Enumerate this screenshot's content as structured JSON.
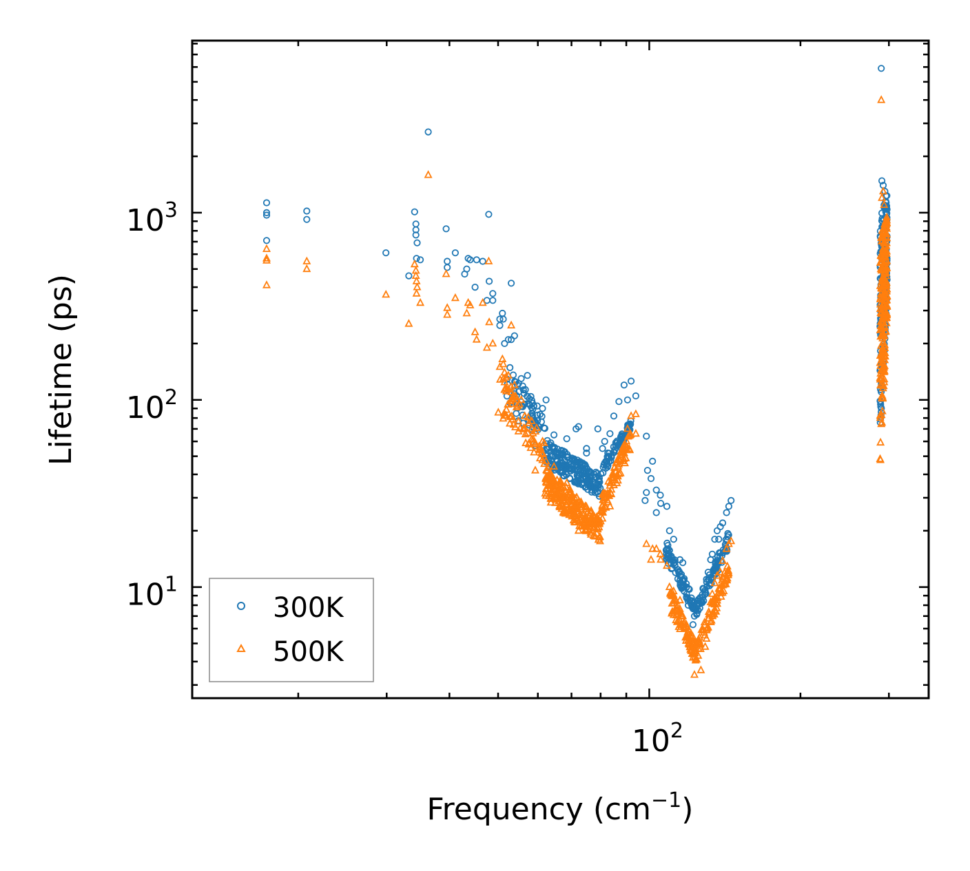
{
  "chart_data": {
    "type": "scatter",
    "title": "",
    "xlabel": "Frequency (cm",
    "xlabel_sup": "−1",
    "xlabel_tail": ")",
    "ylabel": "Lifetime (ps)",
    "xscale": "log",
    "yscale": "log",
    "xlim": [
      12.3,
      360
    ],
    "ylim": [
      2.55,
      8300
    ],
    "x_tick_labels": [
      {
        "base": "10",
        "exp": "2",
        "value": 100
      }
    ],
    "y_tick_labels": [
      {
        "base": "10",
        "exp": "1",
        "value": 10
      },
      {
        "base": "10",
        "exp": "2",
        "value": 100
      },
      {
        "base": "10",
        "exp": "3",
        "value": 1000
      }
    ],
    "legend": {
      "position": "bottom-left",
      "entries": [
        "300K",
        "500K"
      ]
    },
    "series": [
      {
        "name": "300K",
        "color": "#1f77b4",
        "marker": "circle",
        "points": [
          [
            17.3,
            1130
          ],
          [
            17.3,
            1000
          ],
          [
            17.3,
            970
          ],
          [
            17.3,
            710
          ],
          [
            20.8,
            1020
          ],
          [
            20.8,
            920
          ],
          [
            29.9,
            610
          ],
          [
            33.2,
            460
          ],
          [
            34.1,
            1010
          ],
          [
            34.3,
            870
          ],
          [
            34.3,
            810
          ],
          [
            34.3,
            760
          ],
          [
            34.5,
            690
          ],
          [
            34.4,
            570
          ],
          [
            35.0,
            560
          ],
          [
            36.3,
            2700
          ],
          [
            39.4,
            820
          ],
          [
            39.6,
            550
          ],
          [
            39.6,
            510
          ],
          [
            41.1,
            610
          ],
          [
            42.9,
            470
          ],
          [
            43.3,
            500
          ],
          [
            43.6,
            570
          ],
          [
            44.0,
            560
          ],
          [
            45.0,
            400
          ],
          [
            45.3,
            560
          ],
          [
            46.6,
            550
          ],
          [
            47.5,
            340
          ],
          [
            47.9,
            980
          ],
          [
            48.0,
            430
          ],
          [
            48.8,
            370
          ],
          [
            48.8,
            340
          ],
          [
            50.4,
            270
          ],
          [
            50.4,
            250
          ],
          [
            51.0,
            290
          ],
          [
            51.2,
            270
          ],
          [
            51.5,
            200
          ],
          [
            52.4,
            210
          ],
          [
            53.1,
            420
          ],
          [
            53.1,
            210
          ],
          [
            53.9,
            220
          ],
          [
            55.6,
            130
          ],
          [
            56.5,
            95
          ],
          [
            57.2,
            135
          ],
          [
            57.6,
            95
          ],
          [
            58.4,
            85
          ],
          [
            59.3,
            75
          ],
          [
            59.3,
            57
          ],
          [
            61.3,
            90
          ],
          [
            62.3,
            100
          ],
          [
            64.6,
            65
          ],
          [
            68.5,
            62
          ],
          [
            70.1,
            48
          ],
          [
            71.5,
            70
          ],
          [
            72.3,
            72
          ],
          [
            73.7,
            46
          ],
          [
            75.0,
            55
          ],
          [
            75.0,
            52
          ],
          [
            77.7,
            40
          ],
          [
            79.0,
            70
          ],
          [
            80.7,
            55
          ],
          [
            81.5,
            60
          ],
          [
            82.7,
            52
          ],
          [
            83.5,
            66
          ],
          [
            85.0,
            82
          ],
          [
            87.0,
            98
          ],
          [
            89.1,
            120
          ],
          [
            90.5,
            100
          ],
          [
            92.0,
            126
          ],
          [
            94.0,
            105
          ],
          [
            98.7,
            64
          ],
          [
            99.2,
            42
          ],
          [
            100.8,
            38
          ],
          [
            101.5,
            47
          ],
          [
            98.7,
            32
          ],
          [
            98.1,
            29
          ],
          [
            103.3,
            33
          ],
          [
            103.3,
            25
          ],
          [
            105.2,
            31
          ],
          [
            105.4,
            28
          ],
          [
            108.4,
            27
          ],
          [
            109.7,
            20
          ],
          [
            111.8,
            18
          ],
          [
            115.1,
            14
          ],
          [
            116.6,
            13.5
          ],
          [
            117.4,
            9.5
          ],
          [
            118.6,
            10
          ],
          [
            119.6,
            8
          ],
          [
            120.5,
            8.5
          ],
          [
            121.7,
            7.8
          ],
          [
            122.2,
            6.3
          ],
          [
            123.0,
            7
          ],
          [
            124.3,
            7.2
          ],
          [
            125.1,
            7.5
          ],
          [
            126.7,
            8.3
          ],
          [
            129.2,
            9.4
          ],
          [
            130.0,
            11
          ],
          [
            131.0,
            12
          ],
          [
            132.5,
            14
          ],
          [
            133.5,
            15
          ],
          [
            135.0,
            18
          ],
          [
            136.5,
            20
          ],
          [
            137.5,
            18
          ],
          [
            138.5,
            21
          ],
          [
            140.0,
            22
          ],
          [
            142.5,
            25
          ],
          [
            144.0,
            27
          ],
          [
            145.5,
            29
          ],
          [
            289.7,
            5900
          ],
          [
            290.5,
            1480
          ],
          [
            291.0,
            930
          ],
          [
            292.3,
            1400
          ],
          [
            293.5,
            1100
          ],
          [
            294.5,
            1300
          ],
          [
            295.5,
            1150
          ],
          [
            296.0,
            900
          ],
          [
            297.0,
            700
          ]
        ]
      },
      {
        "name": "500K",
        "color": "#ff7f0e",
        "marker": "triangle",
        "points": [
          [
            17.3,
            640
          ],
          [
            17.3,
            570
          ],
          [
            17.3,
            555
          ],
          [
            17.3,
            410
          ],
          [
            20.8,
            550
          ],
          [
            20.8,
            500
          ],
          [
            29.9,
            365
          ],
          [
            33.2,
            255
          ],
          [
            34.1,
            530
          ],
          [
            34.3,
            490
          ],
          [
            34.3,
            460
          ],
          [
            34.4,
            430
          ],
          [
            34.5,
            400
          ],
          [
            34.4,
            370
          ],
          [
            35.0,
            330
          ],
          [
            36.3,
            1590
          ],
          [
            39.4,
            470
          ],
          [
            39.6,
            310
          ],
          [
            39.6,
            285
          ],
          [
            41.1,
            350
          ],
          [
            43.3,
            290
          ],
          [
            43.6,
            330
          ],
          [
            44.0,
            320
          ],
          [
            45.0,
            230
          ],
          [
            45.3,
            210
          ],
          [
            46.6,
            330
          ],
          [
            47.5,
            190
          ],
          [
            47.9,
            550
          ],
          [
            48.0,
            260
          ],
          [
            48.8,
            200
          ],
          [
            50.4,
            150
          ],
          [
            51.0,
            165
          ],
          [
            51.2,
            155
          ],
          [
            51.5,
            140
          ],
          [
            52.4,
            135
          ],
          [
            53.1,
            250
          ],
          [
            53.9,
            120
          ],
          [
            55.6,
            100
          ],
          [
            56.5,
            82
          ],
          [
            57.6,
            75
          ],
          [
            58.4,
            70
          ],
          [
            59.3,
            58
          ],
          [
            59.3,
            42
          ],
          [
            61.3,
            60
          ],
          [
            62.3,
            47
          ],
          [
            64.6,
            44
          ],
          [
            68.5,
            36
          ],
          [
            70.1,
            30
          ],
          [
            71.5,
            24
          ],
          [
            72.3,
            20
          ],
          [
            73.7,
            22
          ],
          [
            75.0,
            20
          ],
          [
            77.7,
            21
          ],
          [
            79.0,
            22
          ],
          [
            80.7,
            25
          ],
          [
            81.5,
            30
          ],
          [
            82.7,
            31
          ],
          [
            83.5,
            27
          ],
          [
            85.0,
            35
          ],
          [
            87.0,
            48
          ],
          [
            89.1,
            52
          ],
          [
            90.5,
            70
          ],
          [
            92.0,
            82
          ],
          [
            94.0,
            84
          ],
          [
            94.0,
            66
          ],
          [
            98.7,
            17
          ],
          [
            100.8,
            14
          ],
          [
            101.5,
            16
          ],
          [
            103.3,
            16
          ],
          [
            105.2,
            15
          ],
          [
            105.4,
            14
          ],
          [
            108.4,
            13
          ],
          [
            109.7,
            10
          ],
          [
            111.8,
            9.5
          ],
          [
            115.1,
            8.5
          ],
          [
            116.6,
            7
          ],
          [
            117.4,
            6.5
          ],
          [
            118.6,
            5.5
          ],
          [
            119.6,
            5.2
          ],
          [
            120.5,
            4.8
          ],
          [
            121.7,
            4.4
          ],
          [
            122.2,
            4.2
          ],
          [
            123.0,
            3.4
          ],
          [
            124.3,
            4.1
          ],
          [
            125.1,
            4.3
          ],
          [
            126.7,
            3.6
          ],
          [
            129.2,
            4.8
          ],
          [
            130.0,
            5.3
          ],
          [
            131.0,
            6.8
          ],
          [
            132.5,
            8.3
          ],
          [
            133.5,
            9.2
          ],
          [
            135.0,
            10.5
          ],
          [
            136.5,
            11.5
          ],
          [
            137.5,
            9.8
          ],
          [
            138.5,
            12
          ],
          [
            140.0,
            13.8
          ],
          [
            142.5,
            16
          ],
          [
            144.0,
            17
          ],
          [
            145.5,
            17.6
          ],
          [
            289.7,
            4000
          ],
          [
            290.5,
            1200
          ],
          [
            291.0,
            800
          ],
          [
            292.3,
            1300
          ],
          [
            293.5,
            1100
          ],
          [
            294.5,
            600
          ],
          [
            295.5,
            900
          ],
          [
            296.0,
            420
          ],
          [
            297.0,
            380
          ]
        ]
      }
    ],
    "clusters": [
      {
        "series": "300K",
        "x": [
          52.0,
          62.0
        ],
        "y": [
          [
            165,
            80
          ],
          [
            85,
            62
          ]
        ],
        "n": 70
      },
      {
        "series": "300K",
        "x": [
          62.0,
          80.0
        ],
        "y": [
          [
            62,
            40
          ],
          [
            45,
            30
          ]
        ],
        "n": 200
      },
      {
        "series": "300K",
        "x": [
          80.0,
          92.0
        ],
        "y": [
          [
            45,
            78
          ],
          [
            38,
            70
          ]
        ],
        "n": 80
      },
      {
        "series": "300K",
        "x": [
          108.0,
          124.0
        ],
        "y": [
          [
            18,
            8.2
          ],
          [
            14,
            7.0
          ]
        ],
        "n": 80
      },
      {
        "series": "300K",
        "x": [
          124.0,
          144.0
        ],
        "y": [
          [
            8.2,
            20
          ],
          [
            7.0,
            16
          ]
        ],
        "n": 80
      },
      {
        "series": "300K",
        "x": [
          288.0,
          297.5
        ],
        "y": [
          [
            900,
            1350
          ],
          [
            60,
            350
          ]
        ],
        "n": 220
      },
      {
        "series": "500K",
        "x": [
          50.0,
          62.0
        ],
        "y": [
          [
            155,
            60
          ],
          [
            85,
            45
          ]
        ],
        "n": 70
      },
      {
        "series": "500K",
        "x": [
          62.0,
          80.0
        ],
        "y": [
          [
            45,
            23
          ],
          [
            30,
            17
          ]
        ],
        "n": 220
      },
      {
        "series": "500K",
        "x": [
          80.0,
          92.0
        ],
        "y": [
          [
            30,
            70
          ],
          [
            22,
            55
          ]
        ],
        "n": 80
      },
      {
        "series": "500K",
        "x": [
          110.0,
          124.0
        ],
        "y": [
          [
            10,
            5.0
          ],
          [
            7.5,
            4.0
          ]
        ],
        "n": 80
      },
      {
        "series": "500K",
        "x": [
          124.0,
          144.0
        ],
        "y": [
          [
            5.0,
            14
          ],
          [
            4.0,
            11
          ]
        ],
        "n": 80
      },
      {
        "series": "500K",
        "x": [
          288.0,
          297.5
        ],
        "y": [
          [
            700,
            1000
          ],
          [
            35,
            300
          ]
        ],
        "n": 220
      }
    ]
  }
}
